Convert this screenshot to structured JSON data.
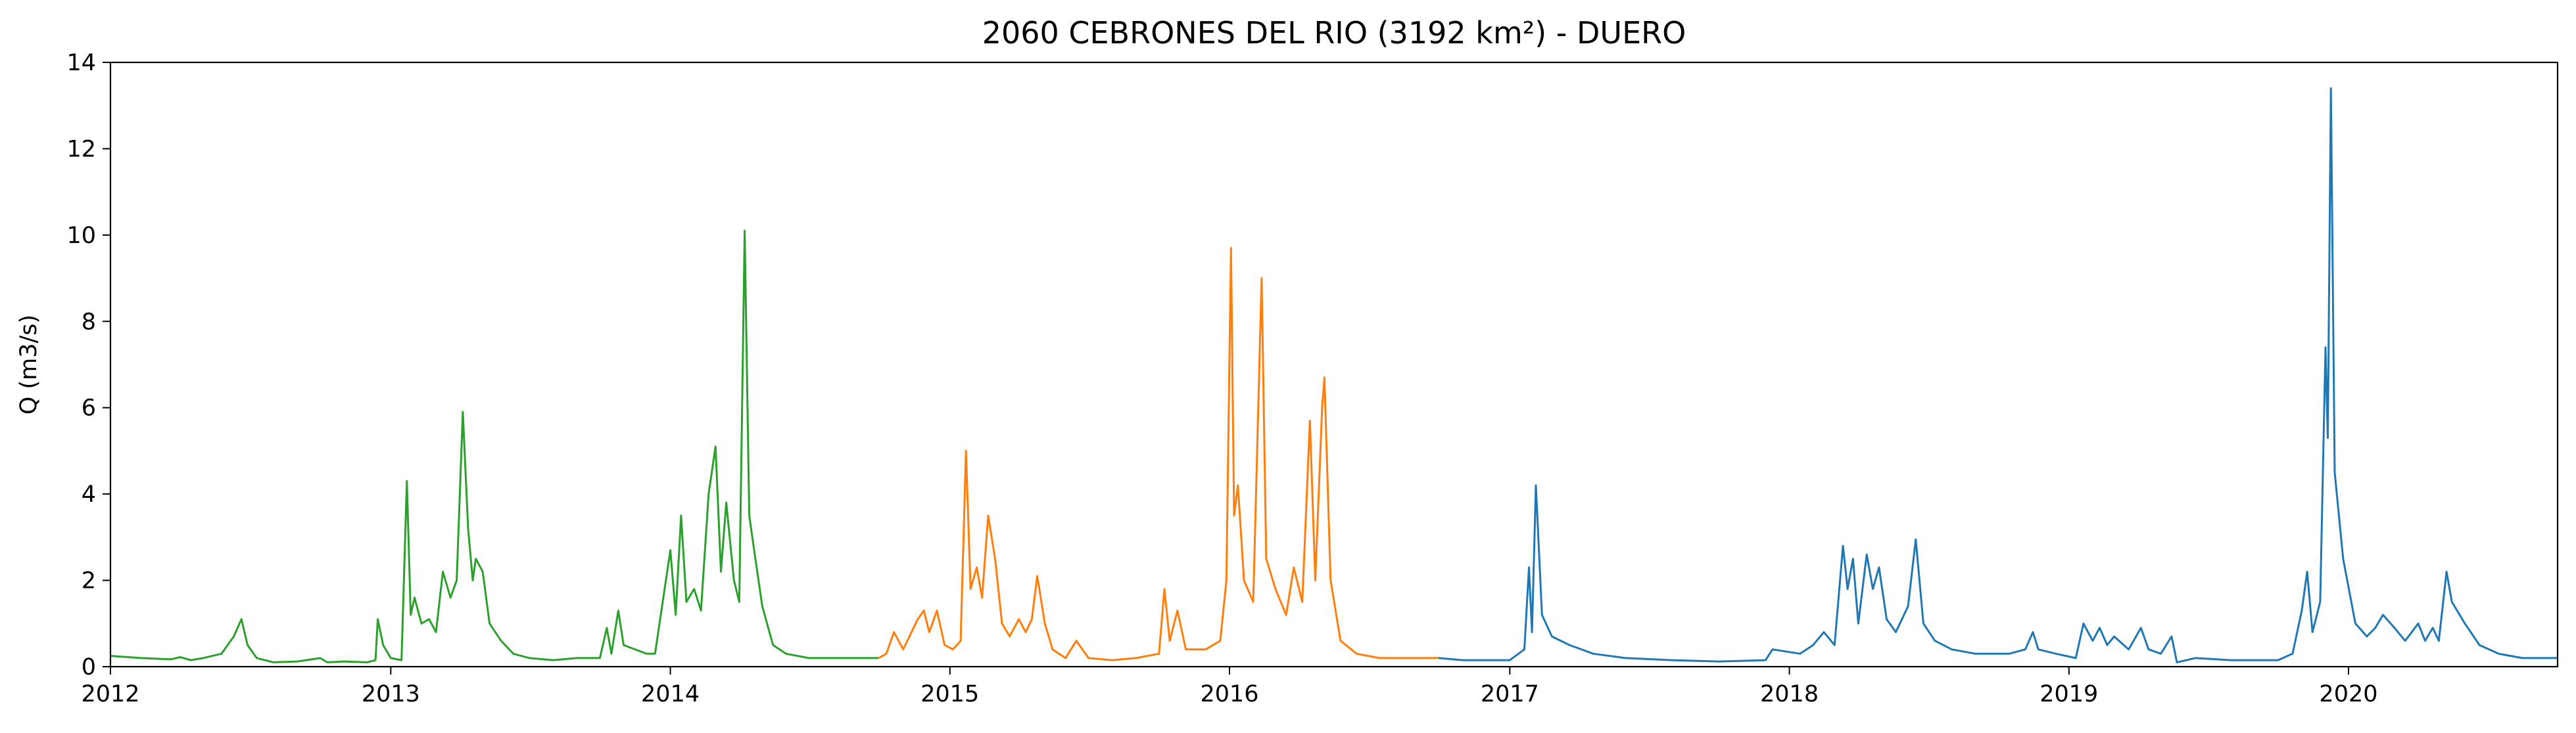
{
  "chart_data": {
    "type": "line",
    "title": "2060 CEBRONES DEL RIO (3192 km²) - DUERO",
    "xlabel": "",
    "ylabel": "Q (m3/s)",
    "xlim": [
      "2012-01-01",
      "2020-09-30"
    ],
    "ylim": [
      0,
      14
    ],
    "x_ticks": [
      "2012",
      "2013",
      "2014",
      "2015",
      "2016",
      "2017",
      "2018",
      "2019",
      "2020"
    ],
    "y_ticks": [
      "0",
      "2",
      "4",
      "6",
      "8",
      "10",
      "12",
      "14"
    ],
    "grid": false,
    "legend": "none",
    "series": [
      {
        "color": "#2ca02c",
        "points": [
          [
            "2012-01-01",
            0.25
          ],
          [
            "2012-02-10",
            0.2
          ],
          [
            "2012-03-20",
            0.17
          ],
          [
            "2012-04-01",
            0.22
          ],
          [
            "2012-04-15",
            0.15
          ],
          [
            "2012-05-01",
            0.2
          ],
          [
            "2012-05-25",
            0.3
          ],
          [
            "2012-06-10",
            0.7
          ],
          [
            "2012-06-20",
            1.1
          ],
          [
            "2012-06-28",
            0.5
          ],
          [
            "2012-07-10",
            0.2
          ],
          [
            "2012-08-01",
            0.1
          ],
          [
            "2012-09-01",
            0.12
          ],
          [
            "2012-10-01",
            0.2
          ],
          [
            "2012-10-10",
            0.1
          ],
          [
            "2012-11-01",
            0.12
          ],
          [
            "2012-12-01",
            0.1
          ],
          [
            "2012-12-12",
            0.15
          ],
          [
            "2012-12-15",
            1.1
          ],
          [
            "2012-12-22",
            0.5
          ],
          [
            "2013-01-01",
            0.2
          ],
          [
            "2013-01-15",
            0.15
          ],
          [
            "2013-01-22",
            4.3
          ],
          [
            "2013-01-27",
            1.2
          ],
          [
            "2013-02-01",
            1.6
          ],
          [
            "2013-02-10",
            1.0
          ],
          [
            "2013-02-20",
            1.1
          ],
          [
            "2013-03-01",
            0.8
          ],
          [
            "2013-03-10",
            2.2
          ],
          [
            "2013-03-20",
            1.6
          ],
          [
            "2013-03-28",
            2.0
          ],
          [
            "2013-04-05",
            5.9
          ],
          [
            "2013-04-12",
            3.2
          ],
          [
            "2013-04-18",
            2.0
          ],
          [
            "2013-04-22",
            2.5
          ],
          [
            "2013-05-01",
            2.2
          ],
          [
            "2013-05-10",
            1.0
          ],
          [
            "2013-05-25",
            0.6
          ],
          [
            "2013-06-10",
            0.3
          ],
          [
            "2013-07-01",
            0.2
          ],
          [
            "2013-08-01",
            0.15
          ],
          [
            "2013-09-01",
            0.2
          ],
          [
            "2013-10-01",
            0.2
          ],
          [
            "2013-10-10",
            0.9
          ],
          [
            "2013-10-16",
            0.3
          ],
          [
            "2013-10-25",
            1.3
          ],
          [
            "2013-11-01",
            0.5
          ],
          [
            "2013-12-01",
            0.3
          ],
          [
            "2013-12-12",
            0.3
          ],
          [
            "2014-01-01",
            2.7
          ],
          [
            "2014-01-08",
            1.2
          ],
          [
            "2014-01-15",
            3.5
          ],
          [
            "2014-01-22",
            1.5
          ],
          [
            "2014-02-01",
            1.8
          ],
          [
            "2014-02-10",
            1.3
          ],
          [
            "2014-02-20",
            4.0
          ],
          [
            "2014-03-01",
            5.1
          ],
          [
            "2014-03-08",
            2.2
          ],
          [
            "2014-03-15",
            3.8
          ],
          [
            "2014-03-25",
            2.0
          ],
          [
            "2014-04-01",
            1.5
          ],
          [
            "2014-04-08",
            10.1
          ],
          [
            "2014-04-14",
            3.5
          ],
          [
            "2014-04-22",
            2.5
          ],
          [
            "2014-05-01",
            1.4
          ],
          [
            "2014-05-15",
            0.5
          ],
          [
            "2014-06-01",
            0.3
          ],
          [
            "2014-07-01",
            0.2
          ],
          [
            "2014-08-01",
            0.2
          ],
          [
            "2014-09-01",
            0.2
          ],
          [
            "2014-09-30",
            0.2
          ]
        ]
      },
      {
        "color": "#ff7f0e",
        "points": [
          [
            "2014-09-30",
            0.2
          ],
          [
            "2014-10-10",
            0.3
          ],
          [
            "2014-10-20",
            0.8
          ],
          [
            "2014-11-01",
            0.4
          ],
          [
            "2014-11-20",
            1.1
          ],
          [
            "2014-11-28",
            1.3
          ],
          [
            "2014-12-05",
            0.8
          ],
          [
            "2014-12-15",
            1.3
          ],
          [
            "2014-12-25",
            0.5
          ],
          [
            "2015-01-05",
            0.4
          ],
          [
            "2015-01-15",
            0.6
          ],
          [
            "2015-01-22",
            5.0
          ],
          [
            "2015-01-28",
            1.8
          ],
          [
            "2015-02-05",
            2.3
          ],
          [
            "2015-02-12",
            1.6
          ],
          [
            "2015-02-20",
            3.5
          ],
          [
            "2015-03-01",
            2.5
          ],
          [
            "2015-03-10",
            1.0
          ],
          [
            "2015-03-20",
            0.7
          ],
          [
            "2015-04-01",
            1.1
          ],
          [
            "2015-04-10",
            0.8
          ],
          [
            "2015-04-18",
            1.1
          ],
          [
            "2015-04-25",
            2.1
          ],
          [
            "2015-05-05",
            1.0
          ],
          [
            "2015-05-15",
            0.4
          ],
          [
            "2015-06-01",
            0.2
          ],
          [
            "2015-06-15",
            0.6
          ],
          [
            "2015-07-01",
            0.2
          ],
          [
            "2015-08-01",
            0.15
          ],
          [
            "2015-09-01",
            0.2
          ],
          [
            "2015-10-01",
            0.3
          ],
          [
            "2015-10-08",
            1.8
          ],
          [
            "2015-10-15",
            0.6
          ],
          [
            "2015-10-25",
            1.3
          ],
          [
            "2015-11-05",
            0.4
          ],
          [
            "2015-12-01",
            0.4
          ],
          [
            "2015-12-20",
            0.6
          ],
          [
            "2015-12-28",
            2.0
          ],
          [
            "2016-01-03",
            9.7
          ],
          [
            "2016-01-07",
            3.5
          ],
          [
            "2016-01-12",
            4.2
          ],
          [
            "2016-01-20",
            2.0
          ],
          [
            "2016-02-01",
            1.5
          ],
          [
            "2016-02-12",
            9.0
          ],
          [
            "2016-02-18",
            2.5
          ],
          [
            "2016-03-01",
            1.8
          ],
          [
            "2016-03-15",
            1.2
          ],
          [
            "2016-03-25",
            2.3
          ],
          [
            "2016-04-05",
            1.5
          ],
          [
            "2016-04-15",
            5.7
          ],
          [
            "2016-04-22",
            2.0
          ],
          [
            "2016-05-01",
            6.0
          ],
          [
            "2016-05-04",
            6.7
          ],
          [
            "2016-05-12",
            2.0
          ],
          [
            "2016-05-25",
            0.6
          ],
          [
            "2016-06-15",
            0.3
          ],
          [
            "2016-07-15",
            0.2
          ],
          [
            "2016-08-15",
            0.2
          ],
          [
            "2016-09-30",
            0.2
          ]
        ]
      },
      {
        "color": "#1f77b4",
        "points": [
          [
            "2016-09-30",
            0.2
          ],
          [
            "2016-11-01",
            0.15
          ],
          [
            "2016-12-01",
            0.15
          ],
          [
            "2017-01-01",
            0.15
          ],
          [
            "2017-01-20",
            0.4
          ],
          [
            "2017-01-26",
            2.3
          ],
          [
            "2017-01-30",
            0.8
          ],
          [
            "2017-02-04",
            4.2
          ],
          [
            "2017-02-12",
            1.2
          ],
          [
            "2017-02-25",
            0.7
          ],
          [
            "2017-03-20",
            0.5
          ],
          [
            "2017-04-20",
            0.3
          ],
          [
            "2017-06-01",
            0.2
          ],
          [
            "2017-08-01",
            0.15
          ],
          [
            "2017-10-01",
            0.12
          ],
          [
            "2017-12-01",
            0.15
          ],
          [
            "2017-12-10",
            0.4
          ],
          [
            "2018-01-15",
            0.3
          ],
          [
            "2018-02-01",
            0.5
          ],
          [
            "2018-02-15",
            0.8
          ],
          [
            "2018-03-01",
            0.5
          ],
          [
            "2018-03-12",
            2.8
          ],
          [
            "2018-03-18",
            1.8
          ],
          [
            "2018-03-25",
            2.5
          ],
          [
            "2018-04-01",
            1.0
          ],
          [
            "2018-04-12",
            2.6
          ],
          [
            "2018-04-20",
            1.8
          ],
          [
            "2018-04-28",
            2.3
          ],
          [
            "2018-05-08",
            1.1
          ],
          [
            "2018-05-20",
            0.8
          ],
          [
            "2018-06-05",
            1.4
          ],
          [
            "2018-06-15",
            2.95
          ],
          [
            "2018-06-25",
            1.0
          ],
          [
            "2018-07-10",
            0.6
          ],
          [
            "2018-08-01",
            0.4
          ],
          [
            "2018-09-01",
            0.3
          ],
          [
            "2018-10-15",
            0.3
          ],
          [
            "2018-11-05",
            0.4
          ],
          [
            "2018-11-15",
            0.8
          ],
          [
            "2018-11-22",
            0.4
          ],
          [
            "2018-12-15",
            0.3
          ],
          [
            "2019-01-10",
            0.2
          ],
          [
            "2019-01-20",
            1.0
          ],
          [
            "2019-02-01",
            0.6
          ],
          [
            "2019-02-10",
            0.9
          ],
          [
            "2019-02-20",
            0.5
          ],
          [
            "2019-03-01",
            0.7
          ],
          [
            "2019-03-20",
            0.4
          ],
          [
            "2019-04-05",
            0.9
          ],
          [
            "2019-04-15",
            0.4
          ],
          [
            "2019-05-01",
            0.3
          ],
          [
            "2019-05-15",
            0.7
          ],
          [
            "2019-05-22",
            0.1
          ],
          [
            "2019-06-15",
            0.2
          ],
          [
            "2019-08-01",
            0.15
          ],
          [
            "2019-10-01",
            0.15
          ],
          [
            "2019-10-20",
            0.3
          ],
          [
            "2019-11-01",
            1.3
          ],
          [
            "2019-11-08",
            2.2
          ],
          [
            "2019-11-15",
            0.8
          ],
          [
            "2019-11-25",
            1.5
          ],
          [
            "2019-12-02",
            7.4
          ],
          [
            "2019-12-05",
            5.3
          ],
          [
            "2019-12-09",
            13.4
          ],
          [
            "2019-12-14",
            4.5
          ],
          [
            "2019-12-25",
            2.5
          ],
          [
            "2020-01-10",
            1.0
          ],
          [
            "2020-01-25",
            0.7
          ],
          [
            "2020-02-05",
            0.9
          ],
          [
            "2020-02-15",
            1.2
          ],
          [
            "2020-03-01",
            0.9
          ],
          [
            "2020-03-15",
            0.6
          ],
          [
            "2020-04-01",
            1.0
          ],
          [
            "2020-04-10",
            0.6
          ],
          [
            "2020-04-20",
            0.9
          ],
          [
            "2020-04-28",
            0.6
          ],
          [
            "2020-05-08",
            2.2
          ],
          [
            "2020-05-15",
            1.5
          ],
          [
            "2020-06-01",
            1.0
          ],
          [
            "2020-06-20",
            0.5
          ],
          [
            "2020-07-15",
            0.3
          ],
          [
            "2020-08-15",
            0.2
          ],
          [
            "2020-09-30",
            0.2
          ]
        ]
      }
    ]
  }
}
